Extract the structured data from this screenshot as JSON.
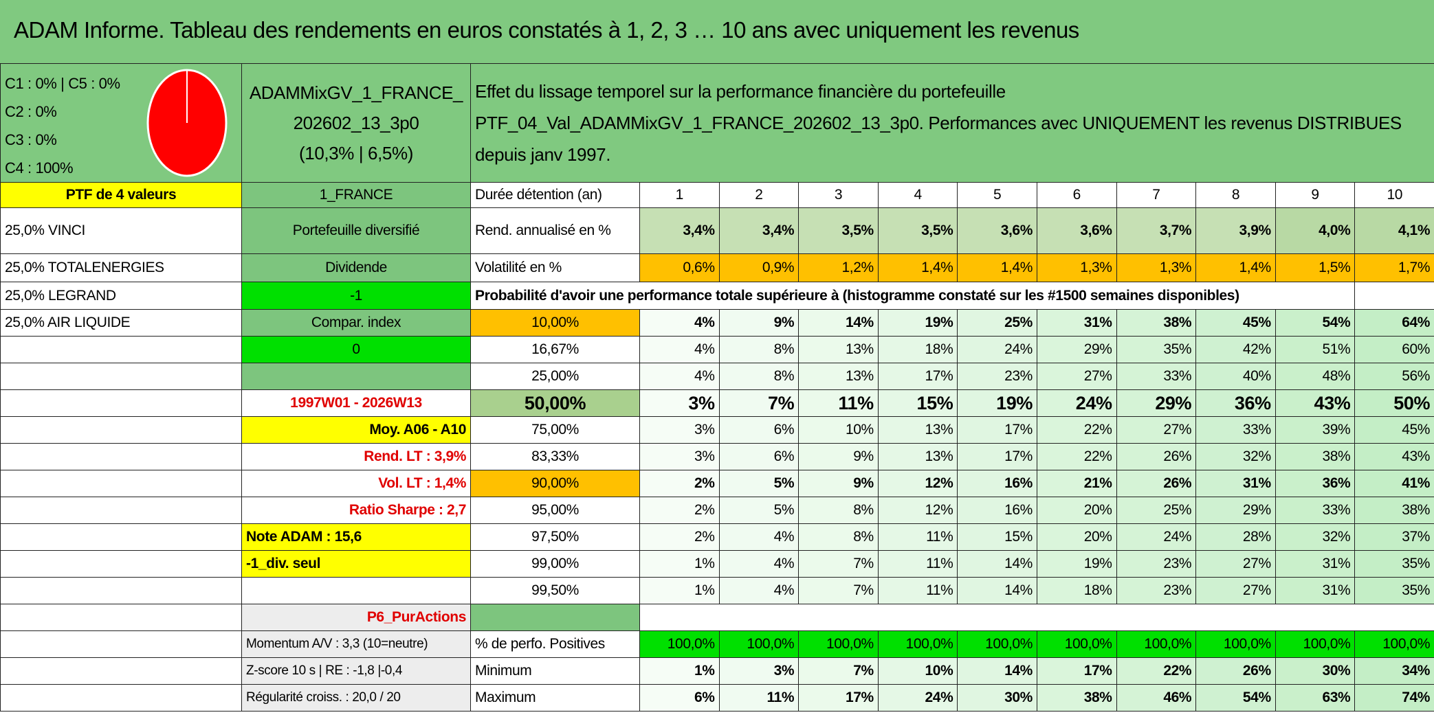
{
  "title": "ADAM Informe. Tableau des rendements en euros constatés à 1, 2, 3 … 10 ans avec uniquement les revenus",
  "allocation": [
    "C1 : 0% | C5 : 0%",
    "C2 : 0%",
    "C3 : 0%",
    "C4 : 100%"
  ],
  "portfolio": {
    "name": "ADAMMixGV_1_FRANCE_202602_13_3p0",
    "stats": "(10,3% | 6,5%)"
  },
  "description": [
    "Effet du lissage temporel sur la performance financière du portefeuille",
    "PTF_04_Val_ADAMMixGV_1_FRANCE_202602_13_3p0. Performances avec UNIQUEMENT les revenus DISTRIBUES depuis janv 1997."
  ],
  "holdings": {
    "title": "PTF de 4 valeurs",
    "lines": [
      "25,0% VINCI",
      "25,0% TOTALENERGIES",
      "25,0% LEGRAND",
      "25,0% AIR LIQUIDE"
    ]
  },
  "side": {
    "region": "1_FRANCE",
    "kind": "Portefeuille diversifié",
    "mode": "Dividende",
    "dividend_flag": "-1",
    "compare_label": "Compar. index",
    "compare_value": "0",
    "period": "1997W01 - 2026W13",
    "average": "Moy. A06 - A10",
    "long_term_return": "Rend. LT : 3,9%",
    "long_term_volatility": "Vol. LT : 1,4%",
    "sharpe": "Ratio Sharpe : 2,7",
    "adam_score": "Note ADAM : 15,6",
    "variant": "-1_div. seul",
    "profile": "P6_PurActions",
    "momentum": "Momentum A/V : 3,3 (10=neutre)",
    "zscore": "Z-score 10 s | RE : -1,8 |-0,4",
    "regularity": "Régularité croiss. : 20,0 / 20"
  },
  "table": {
    "duration_label": "Durée détention (an)",
    "years": [
      1,
      2,
      3,
      4,
      5,
      6,
      7,
      8,
      9,
      10
    ],
    "return_label": "Rend. annualisé en %",
    "returns": [
      "3,4%",
      "3,4%",
      "3,5%",
      "3,5%",
      "3,6%",
      "3,6%",
      "3,7%",
      "3,9%",
      "4,0%",
      "4,1%"
    ],
    "volatility_label": "Volatilité en %",
    "volatility": [
      "0,6%",
      "0,9%",
      "1,2%",
      "1,4%",
      "1,4%",
      "1,3%",
      "1,3%",
      "1,4%",
      "1,5%",
      "1,7%"
    ],
    "probability_title": "Probabilité d'avoir une performance totale supérieure à (histogramme constaté sur les #1500 semaines disponibles)",
    "probability_rows": [
      {
        "threshold": "10,00%",
        "values": [
          "4%",
          "9%",
          "14%",
          "19%",
          "25%",
          "31%",
          "38%",
          "45%",
          "54%",
          "64%"
        ]
      },
      {
        "threshold": "16,67%",
        "values": [
          "4%",
          "8%",
          "13%",
          "18%",
          "24%",
          "29%",
          "35%",
          "42%",
          "51%",
          "60%"
        ]
      },
      {
        "threshold": "25,00%",
        "values": [
          "4%",
          "8%",
          "13%",
          "17%",
          "23%",
          "27%",
          "33%",
          "40%",
          "48%",
          "56%"
        ]
      },
      {
        "threshold": "50,00%",
        "values": [
          "3%",
          "7%",
          "11%",
          "15%",
          "19%",
          "24%",
          "29%",
          "36%",
          "43%",
          "50%"
        ]
      },
      {
        "threshold": "75,00%",
        "values": [
          "3%",
          "6%",
          "10%",
          "13%",
          "17%",
          "22%",
          "27%",
          "33%",
          "39%",
          "45%"
        ]
      },
      {
        "threshold": "83,33%",
        "values": [
          "3%",
          "6%",
          "9%",
          "13%",
          "17%",
          "22%",
          "26%",
          "32%",
          "38%",
          "43%"
        ]
      },
      {
        "threshold": "90,00%",
        "values": [
          "2%",
          "5%",
          "9%",
          "12%",
          "16%",
          "21%",
          "26%",
          "31%",
          "36%",
          "41%"
        ]
      },
      {
        "threshold": "95,00%",
        "values": [
          "2%",
          "5%",
          "8%",
          "12%",
          "16%",
          "20%",
          "25%",
          "29%",
          "33%",
          "38%"
        ]
      },
      {
        "threshold": "97,50%",
        "values": [
          "2%",
          "4%",
          "8%",
          "11%",
          "15%",
          "20%",
          "24%",
          "28%",
          "32%",
          "37%"
        ]
      },
      {
        "threshold": "99,00%",
        "values": [
          "1%",
          "4%",
          "7%",
          "11%",
          "14%",
          "19%",
          "23%",
          "27%",
          "31%",
          "35%"
        ]
      },
      {
        "threshold": "99,50%",
        "values": [
          "1%",
          "4%",
          "7%",
          "11%",
          "14%",
          "18%",
          "23%",
          "27%",
          "31%",
          "35%"
        ]
      }
    ],
    "positive_label": "% de perfo. Positives",
    "positive": [
      "100,0%",
      "100,0%",
      "100,0%",
      "100,0%",
      "100,0%",
      "100,0%",
      "100,0%",
      "100,0%",
      "100,0%",
      "100,0%"
    ],
    "min_label": "Minimum",
    "min": [
      "1%",
      "3%",
      "7%",
      "10%",
      "14%",
      "17%",
      "22%",
      "26%",
      "30%",
      "34%"
    ],
    "max_label": "Maximum",
    "max": [
      "6%",
      "11%",
      "17%",
      "24%",
      "30%",
      "38%",
      "46%",
      "54%",
      "63%",
      "74%"
    ]
  }
}
